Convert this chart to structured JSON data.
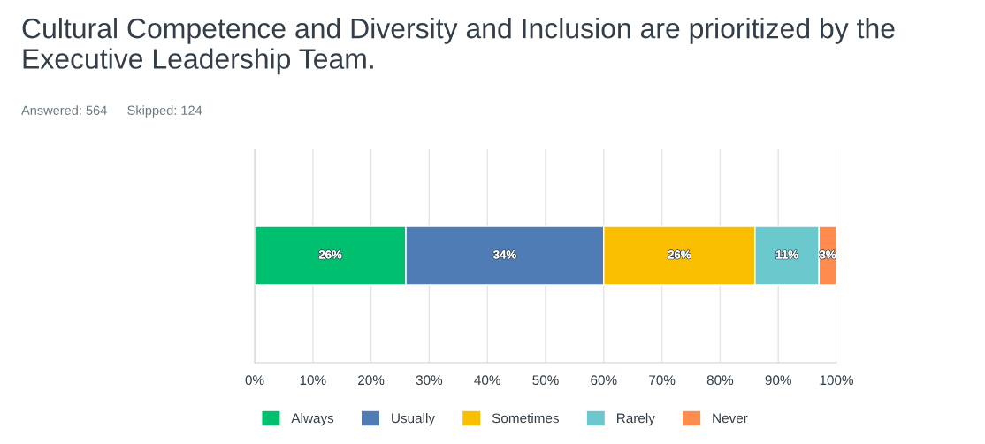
{
  "chart_data": {
    "type": "bar",
    "orientation": "horizontal",
    "stacked": true,
    "title": "Cultural Competence and Diversity and Inclusion are prioritized by the Executive Leadership Team.",
    "annotations": [
      "Answered: 564",
      "Skipped: 124"
    ],
    "categories": [
      null
    ],
    "series": [
      {
        "name": "Always",
        "color": "#00bf6f",
        "values": [
          26
        ],
        "value_labels": [
          "26%"
        ]
      },
      {
        "name": "Usually",
        "color": "#507cb6",
        "values": [
          34
        ],
        "value_labels": [
          "34%"
        ]
      },
      {
        "name": "Sometimes",
        "color": "#f9be00",
        "values": [
          26
        ],
        "value_labels": [
          "26%"
        ]
      },
      {
        "name": "Rarely",
        "color": "#6bc8cd",
        "values": [
          11
        ],
        "value_labels": [
          "11%"
        ]
      },
      {
        "name": "Never",
        "color": "#ff8b4f",
        "values": [
          3
        ],
        "value_labels": [
          "3%"
        ]
      }
    ],
    "xlim": [
      0,
      100
    ],
    "xticks": [
      {
        "value": 0,
        "label": "0%"
      },
      {
        "value": 10,
        "label": "10%"
      },
      {
        "value": 20,
        "label": "20%"
      },
      {
        "value": 30,
        "label": "30%"
      },
      {
        "value": 40,
        "label": "40%"
      },
      {
        "value": 50,
        "label": "50%"
      },
      {
        "value": 60,
        "label": "60%"
      },
      {
        "value": 70,
        "label": "70%"
      },
      {
        "value": 80,
        "label": "80%"
      },
      {
        "value": 90,
        "label": "90%"
      },
      {
        "value": 100,
        "label": "100%"
      }
    ],
    "grid": "x",
    "legend": "bottom"
  }
}
